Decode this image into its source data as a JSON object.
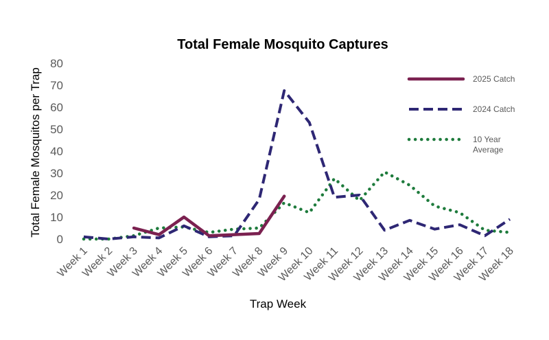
{
  "chart_data": {
    "type": "line",
    "title": "Total Female Mosquito Captures",
    "xlabel": "Trap Week",
    "ylabel": "Total Female Mosquitos per Trap",
    "categories": [
      "Week 1",
      "Week 2",
      "Week 3",
      "Week 4",
      "Week 5",
      "Week 6",
      "Week 7",
      "Week 8",
      "Week 9",
      "Week 10",
      "Week 11",
      "Week 12",
      "Week 13",
      "Week 14",
      "Week 15",
      "Week 16",
      "Week 17",
      "Week 18"
    ],
    "ylim": [
      0,
      80
    ],
    "yticks": [
      0,
      10,
      20,
      30,
      40,
      50,
      60,
      70,
      80
    ],
    "grid": false,
    "legend_position": "right",
    "series": [
      {
        "name": "2025 Catch",
        "color": "#7B2150",
        "style": "solid",
        "values": [
          null,
          null,
          5,
          2,
          10,
          1.5,
          2,
          2.5,
          19.5,
          null,
          null,
          null,
          null,
          null,
          null,
          null,
          null,
          null
        ]
      },
      {
        "name": "2024 Catch",
        "color": "#2E2774",
        "style": "dashed",
        "values": [
          1,
          0,
          1,
          0.5,
          6,
          1,
          1.5,
          18,
          67.5,
          53,
          19,
          20,
          4,
          8.5,
          4.5,
          6.5,
          1.5,
          9
        ]
      },
      {
        "name": "10 Year Average",
        "color": "#1E7B3C",
        "style": "dotted",
        "values": [
          0,
          0,
          1.5,
          5,
          5.5,
          3,
          4.5,
          5,
          16.5,
          12,
          27.5,
          17.5,
          30.5,
          24.5,
          15,
          12,
          4,
          3
        ]
      }
    ],
    "legend_lines": [
      [
        "2025 Catch"
      ],
      [
        "2024 Catch"
      ],
      [
        "10 Year",
        "Average"
      ]
    ]
  }
}
